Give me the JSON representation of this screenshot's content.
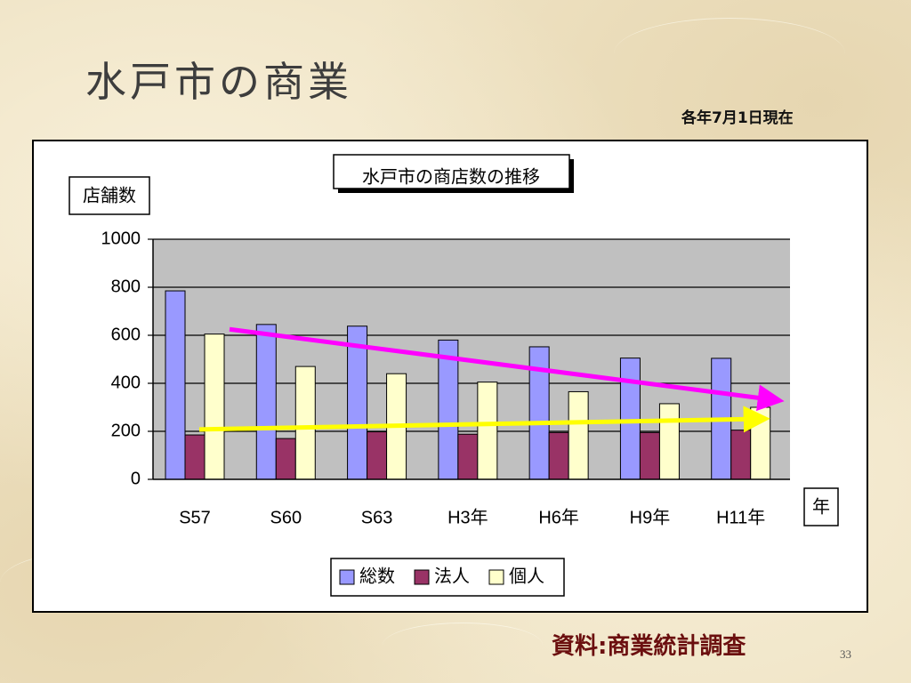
{
  "slide": {
    "title": "水戸市の商業",
    "date_note": "各年7月1日現在",
    "source": "資料:商業統計調査",
    "page_number": "33"
  },
  "chart_data": {
    "type": "bar",
    "title": "水戸市の商店数の推移",
    "ylabel": "店舗数",
    "xlabel": "年",
    "categories": [
      "S57",
      "S60",
      "S63",
      "H3年",
      "H6年",
      "H9年",
      "H11年"
    ],
    "series": [
      {
        "name": "総数",
        "color": "#9999ff",
        "values": [
          785,
          645,
          638,
          580,
          552,
          505,
          504
        ]
      },
      {
        "name": "法人",
        "color": "#993366",
        "values": [
          185,
          170,
          198,
          188,
          195,
          195,
          205
        ]
      },
      {
        "name": "個人",
        "color": "#ffffcc",
        "values": [
          605,
          470,
          440,
          405,
          365,
          315,
          300
        ]
      }
    ],
    "ylim": [
      0,
      1000
    ],
    "yticks": [
      0,
      200,
      400,
      600,
      800,
      1000
    ],
    "grid": true,
    "plot_background": "#c0c0c0",
    "legend": "bottom",
    "annotations": [
      {
        "name": "decrease-arrow",
        "color": "#ff00ff",
        "from": {
          "x": "S57",
          "y": 625
        },
        "to": {
          "x": "H11年",
          "y": 330
        }
      },
      {
        "name": "flat-arrow",
        "color": "#ffff00",
        "from": {
          "x": "S57",
          "y": 208
        },
        "to": {
          "x": "H11年",
          "y": 252
        }
      }
    ]
  }
}
